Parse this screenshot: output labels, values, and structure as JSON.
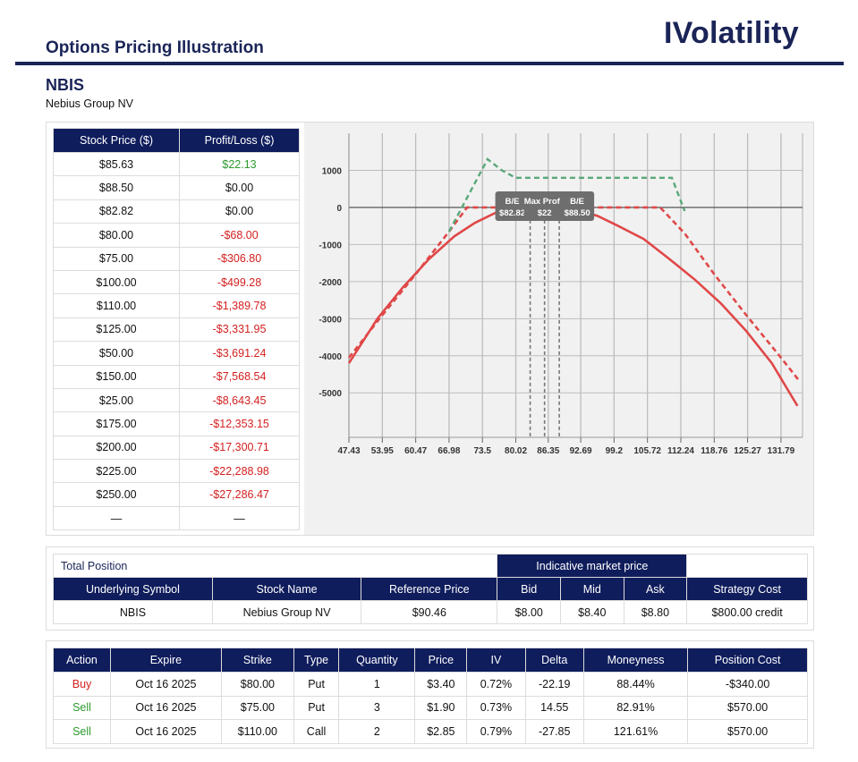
{
  "header": {
    "page_title": "Options Pricing Illustration",
    "brand": "IVolatility",
    "ticker": "NBIS",
    "company": "Nebius Group NV"
  },
  "colors": {
    "navy": "#0f1d5c",
    "profit": "#2e9a2e",
    "loss": "#d42020",
    "expiry_line": "#e04848",
    "dash_green": "#5aa87a"
  },
  "pl_table": {
    "headers": [
      "Stock Price ($)",
      "Profit/Loss ($)"
    ],
    "rows": [
      [
        "$85.63",
        "$22.13"
      ],
      [
        "$88.50",
        "$0.00"
      ],
      [
        "$82.82",
        "$0.00"
      ],
      [
        "$80.00",
        "-$68.00"
      ],
      [
        "$75.00",
        "-$306.80"
      ],
      [
        "$100.00",
        "-$499.28"
      ],
      [
        "$110.00",
        "-$1,389.78"
      ],
      [
        "$125.00",
        "-$3,331.95"
      ],
      [
        "$50.00",
        "-$3,691.24"
      ],
      [
        "$150.00",
        "-$7,568.54"
      ],
      [
        "$25.00",
        "-$8,643.45"
      ],
      [
        "$175.00",
        "-$12,353.15"
      ],
      [
        "$200.00",
        "-$17,300.71"
      ],
      [
        "$225.00",
        "-$22,288.98"
      ],
      [
        "$250.00",
        "-$27,286.47"
      ],
      [
        "—",
        "—"
      ]
    ]
  },
  "chart_data": {
    "type": "line",
    "x_ticks": [
      "47.43",
      "53.95",
      "60.47",
      "66.98",
      "73.5",
      "80.02",
      "86.35",
      "92.69",
      "99.2",
      "105.72",
      "112.24",
      "118.76",
      "125.27",
      "131.79"
    ],
    "y_ticks": [
      "1000",
      "0",
      "-1000",
      "-2000",
      "-3000",
      "-4000",
      "-5000"
    ],
    "xlim": [
      47.43,
      136
    ],
    "ylim": [
      -6200,
      2000
    ],
    "series": [
      {
        "style": "solid-red",
        "x": [
          47.43,
          53,
          58,
          63,
          68,
          72,
          76,
          80,
          83,
          85.63,
          88,
          92,
          96,
          100,
          105,
          110,
          115,
          120,
          125,
          130,
          135
        ],
        "y": [
          -4200,
          -3000,
          -2150,
          -1400,
          -780,
          -420,
          -150,
          -40,
          0,
          22,
          5,
          -60,
          -230,
          -499,
          -850,
          -1390,
          -1950,
          -2580,
          -3330,
          -4200,
          -5350
        ]
      },
      {
        "style": "dashed-red",
        "x": [
          47.43,
          53.4,
          60.47,
          66.98,
          70.5,
          78.5,
          85.63,
          88.5,
          102,
          108.2,
          113,
          118.76,
          125.27,
          131.79,
          135.5
        ],
        "y": [
          -4050,
          -3000,
          -1800,
          -650,
          0,
          0,
          0,
          0,
          0,
          0,
          -700,
          -1800,
          -2950,
          -4050,
          -4700
        ]
      },
      {
        "style": "dashed-green",
        "x": [
          66.98,
          74.5,
          77.3,
          80,
          85,
          100,
          108,
          110.5,
          113
        ],
        "y": [
          -650,
          1300,
          1000,
          800,
          800,
          800,
          800,
          800,
          -100
        ]
      }
    ],
    "markers": [
      {
        "label": "B/E",
        "value": "$82.82",
        "x": 82.82
      },
      {
        "label": "Max Profit",
        "value": "$22",
        "x": 85.63
      },
      {
        "label": "B/E",
        "value": "$88.50",
        "x": 88.5
      }
    ],
    "vlines": [
      82.82,
      85.63,
      88.5
    ],
    "grid": true
  },
  "total_position": {
    "title": "Total Position",
    "market_header": "Indicative market price",
    "headers": [
      "Underlying Symbol",
      "Stock Name",
      "Reference Price",
      "Bid",
      "Mid",
      "Ask",
      "Strategy Cost"
    ],
    "values": [
      "NBIS",
      "Nebius Group NV",
      "$90.46",
      "$8.00",
      "$8.40",
      "$8.80",
      "$800.00 credit"
    ]
  },
  "legs": {
    "headers": [
      "Action",
      "Expire",
      "Strike",
      "Type",
      "Quantity",
      "Price",
      "IV",
      "Delta",
      "Moneyness",
      "Position Cost"
    ],
    "rows": [
      [
        "Buy",
        "Oct 16 2025",
        "$80.00",
        "Put",
        "1",
        "$3.40",
        "0.72%",
        "-22.19",
        "88.44%",
        "-$340.00"
      ],
      [
        "Sell",
        "Oct 16 2025",
        "$75.00",
        "Put",
        "3",
        "$1.90",
        "0.73%",
        "14.55",
        "82.91%",
        "$570.00"
      ],
      [
        "Sell",
        "Oct 16 2025",
        "$110.00",
        "Call",
        "2",
        "$2.85",
        "0.79%",
        "-27.85",
        "121.61%",
        "$570.00"
      ]
    ]
  }
}
